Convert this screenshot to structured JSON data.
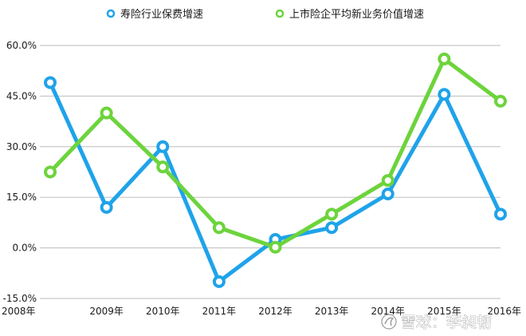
{
  "chart_data": {
    "type": "line",
    "categories": [
      "2008年",
      "2009年",
      "2010年",
      "2011年",
      "2012年",
      "2013年",
      "2014年",
      "2015年",
      "2016年"
    ],
    "series": [
      {
        "name": "寿险行业保费增速",
        "color": "#1fa3ea",
        "values": [
          49.0,
          12.0,
          30.0,
          -10.0,
          2.5,
          6.0,
          16.0,
          45.5,
          10.0
        ]
      },
      {
        "name": "上市险企平均新业务价值增速",
        "color": "#6cd43c",
        "values": [
          22.5,
          40.0,
          24.0,
          6.0,
          0.2,
          10.0,
          20.0,
          56.0,
          43.5
        ]
      }
    ],
    "ylim": [
      -15,
      60
    ],
    "yticks": [
      -15,
      0,
      15,
      30,
      45,
      60
    ],
    "ytick_labels": [
      "-15.0%",
      "0.0%",
      "15.0%",
      "30.0%",
      "45.0%",
      "60.0%"
    ],
    "grid": true,
    "legend_position": "top",
    "title": "",
    "xlabel": "",
    "ylabel": ""
  },
  "watermark": {
    "text": "雪球：李昶韧",
    "logo": "snowball-logo"
  }
}
